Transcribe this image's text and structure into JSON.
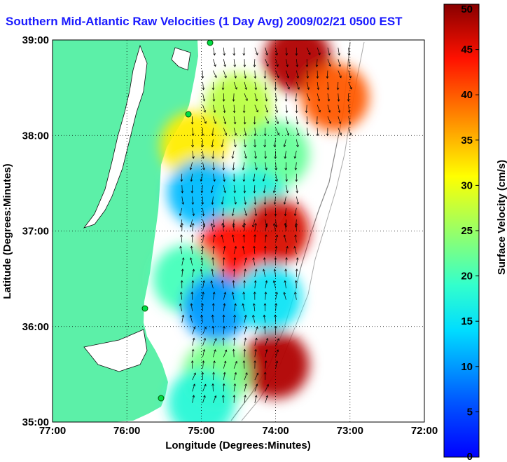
{
  "title": "Southern Mid-Atlantic Raw Velocities (1 Day Avg) 2009/02/21 0500 EST",
  "xlabel": "Longitude (Degrees:Minutes)",
  "ylabel": "Latitude (Degrees:Minutes)",
  "colorbar_label": "Surface Velocity (cm/s)",
  "x_ticks": [
    "77:00",
    "76:00",
    "75:00",
    "74:00",
    "73:00",
    "72:00"
  ],
  "y_ticks": [
    "39:00",
    "38:00",
    "37:00",
    "36:00",
    "35:00"
  ],
  "colorbar_ticks": [
    "0",
    "5",
    "10",
    "15",
    "20",
    "25",
    "30",
    "35",
    "40",
    "45",
    "50"
  ],
  "colors": {
    "land": "#5cf0a8",
    "ocean": "#ffffff",
    "title": "#1a1aff",
    "vector": "#000000"
  },
  "chart_data": {
    "type": "heatmap",
    "x_range_deg": [
      -77,
      -72
    ],
    "y_range_deg": [
      35,
      39
    ],
    "colorbar_range": [
      0,
      50
    ],
    "grid": true,
    "colorbar_position": "right",
    "speed_regions": [
      {
        "lon": -73.7,
        "lat": 38.8,
        "speed": 48
      },
      {
        "lon": -73.2,
        "lat": 38.4,
        "speed": 40
      },
      {
        "lon": -74.5,
        "lat": 38.3,
        "speed": 27
      },
      {
        "lon": -75.1,
        "lat": 37.9,
        "speed": 32
      },
      {
        "lon": -74.0,
        "lat": 37.8,
        "speed": 22
      },
      {
        "lon": -75.0,
        "lat": 37.4,
        "speed": 12
      },
      {
        "lon": -74.3,
        "lat": 37.3,
        "speed": 17
      },
      {
        "lon": -74.0,
        "lat": 37.0,
        "speed": 46
      },
      {
        "lon": -74.6,
        "lat": 36.8,
        "speed": 44
      },
      {
        "lon": -75.2,
        "lat": 36.5,
        "speed": 20
      },
      {
        "lon": -74.8,
        "lat": 36.2,
        "speed": 10
      },
      {
        "lon": -74.1,
        "lat": 36.3,
        "speed": 15
      },
      {
        "lon": -74.0,
        "lat": 35.6,
        "speed": 48
      },
      {
        "lon": -74.8,
        "lat": 35.5,
        "speed": 23
      },
      {
        "lon": -75.0,
        "lat": 35.2,
        "speed": 18
      }
    ],
    "vector_field": [
      {
        "lat_range": [
          38.0,
          39.0
        ],
        "direction_deg": 200,
        "note": ""
      },
      {
        "lat_range": [
          37.0,
          38.0
        ],
        "direction_deg": 210,
        "note": ""
      },
      {
        "lat_range": [
          36.0,
          37.0
        ],
        "direction_deg": 30,
        "note": ""
      },
      {
        "lat_range": [
          35.0,
          36.0
        ],
        "direction_deg": 40,
        "note": ""
      }
    ]
  }
}
